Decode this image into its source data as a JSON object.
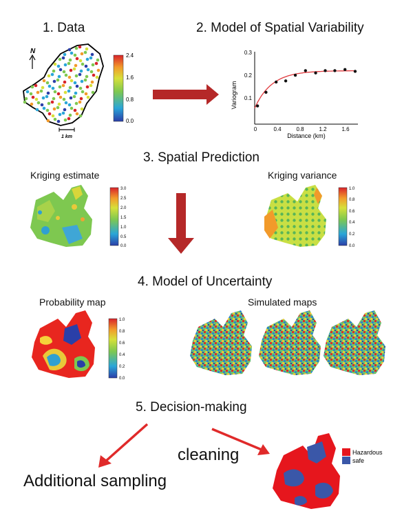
{
  "steps": {
    "s1": "1. Data",
    "s2": "2. Model of Spatial Variability",
    "s3": "3. Spatial Prediction",
    "s4": "4. Model of Uncertainty",
    "s5": "5. Decision-making"
  },
  "data_panel": {
    "north": "N",
    "scale_label": "1 km",
    "colorbar_ticks": [
      "2.4",
      "1.6",
      "0.8",
      "0.0"
    ]
  },
  "variogram": {
    "ylabel": "Variogram",
    "xlabel": "Distance (km)",
    "yticks": [
      "0.3",
      "0.2",
      "0.1"
    ],
    "xticks": [
      "0",
      "0.4",
      "0.8",
      "1.2",
      "1.6"
    ],
    "points": [
      [
        0.05,
        0.08
      ],
      [
        0.2,
        0.14
      ],
      [
        0.38,
        0.185
      ],
      [
        0.55,
        0.19
      ],
      [
        0.72,
        0.215
      ],
      [
        0.9,
        0.235
      ],
      [
        1.08,
        0.225
      ],
      [
        1.25,
        0.235
      ],
      [
        1.42,
        0.235
      ],
      [
        1.6,
        0.24
      ],
      [
        1.78,
        0.232
      ]
    ]
  },
  "prediction": {
    "estimate_title": "Kriging estimate",
    "estimate_ticks": [
      "3.0",
      "2.5",
      "2.0",
      "1.5",
      "1.0",
      "0.5",
      "0.0"
    ],
    "variance_title": "Kriging variance",
    "variance_ticks": [
      "1.0",
      "0.8",
      "0.6",
      "0.4",
      "0.2",
      "0.0"
    ]
  },
  "uncertainty": {
    "prob_title": "Probability map",
    "prob_ticks": [
      "1.0",
      "0.8",
      "0.6",
      "0.4",
      "0.2",
      "0.0"
    ],
    "sim_title": "Simulated maps"
  },
  "decision": {
    "left_label": "Additional sampling",
    "right_label": "cleaning",
    "legend": [
      "Hazardous",
      "safe"
    ]
  },
  "colors": {
    "arrow": "#b52828",
    "red_arrow": "#e02a2a",
    "hazard": "#e6161d",
    "safe": "#3a57a8"
  }
}
